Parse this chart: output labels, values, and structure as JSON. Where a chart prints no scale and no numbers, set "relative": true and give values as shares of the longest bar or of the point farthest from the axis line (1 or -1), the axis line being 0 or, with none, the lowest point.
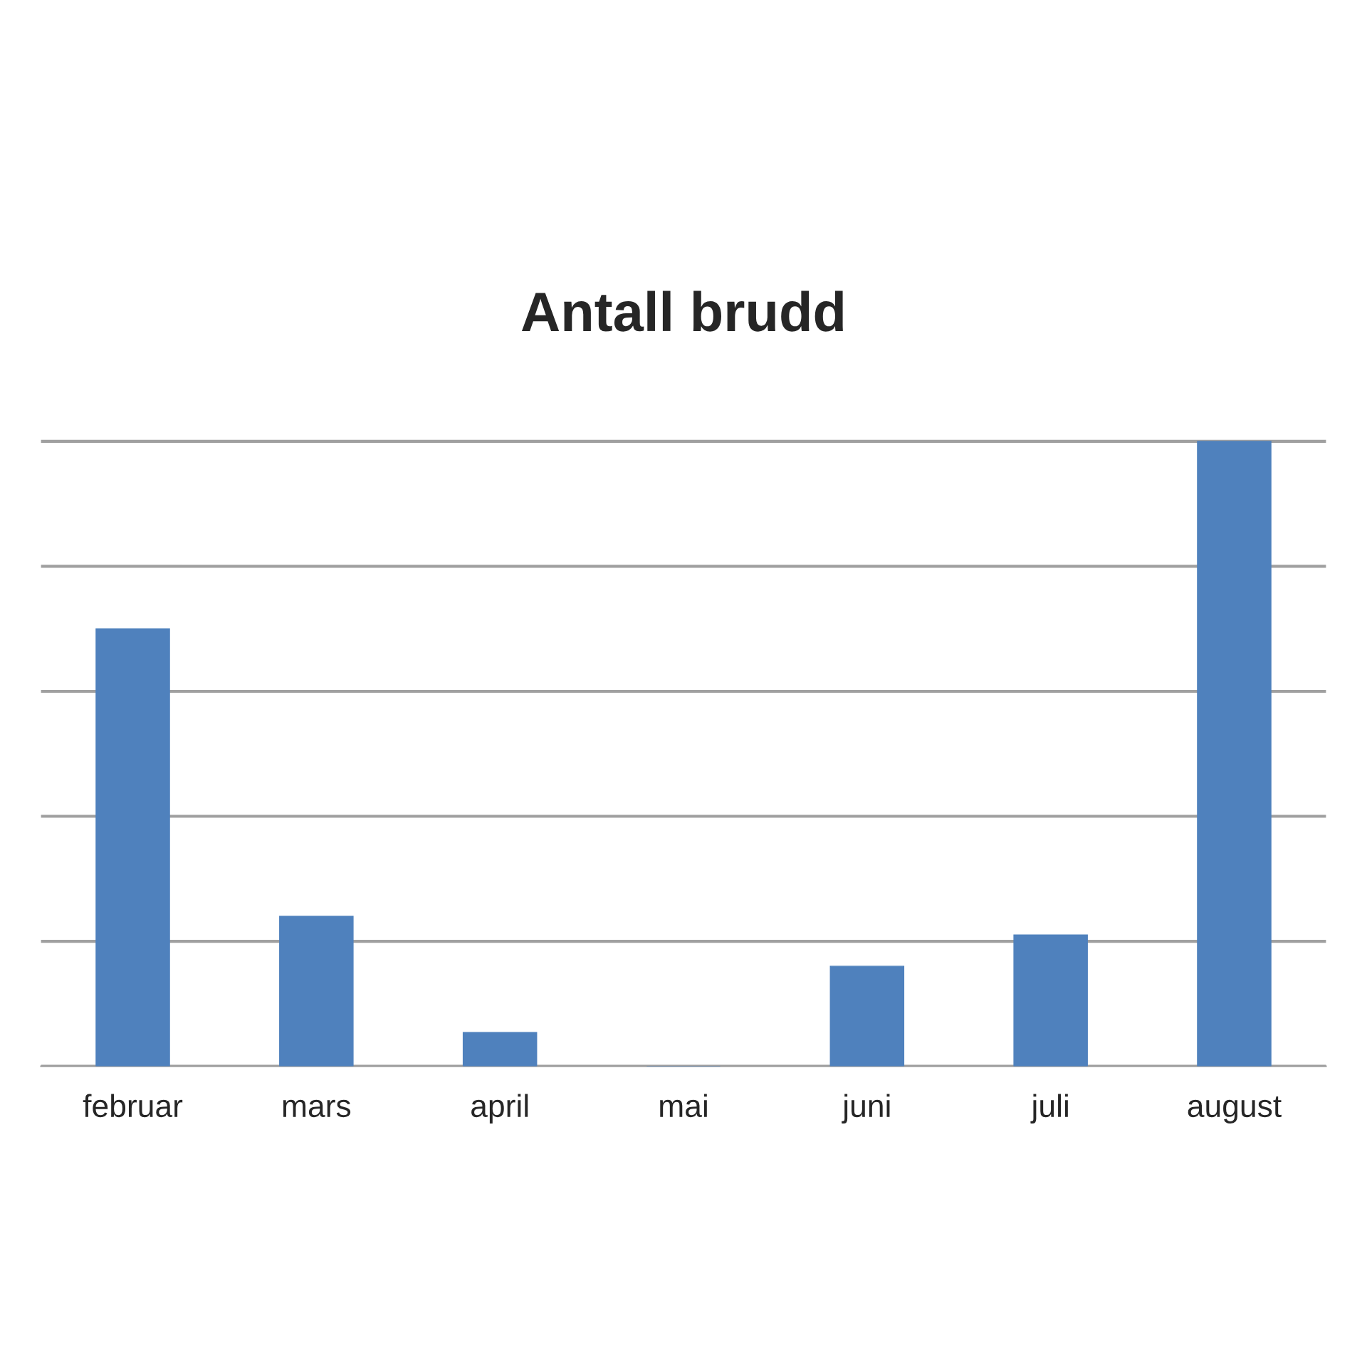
{
  "chart_data": {
    "type": "bar",
    "title": "Antall brudd",
    "relative": true,
    "categories": [
      "februar",
      "mars",
      "april",
      "mai",
      "juni",
      "juli",
      "august"
    ],
    "values": [
      0.7,
      0.24,
      0.054,
      0,
      0.16,
      0.21,
      1
    ],
    "color": "#4f81bd",
    "grid": "y",
    "legend": false
  }
}
